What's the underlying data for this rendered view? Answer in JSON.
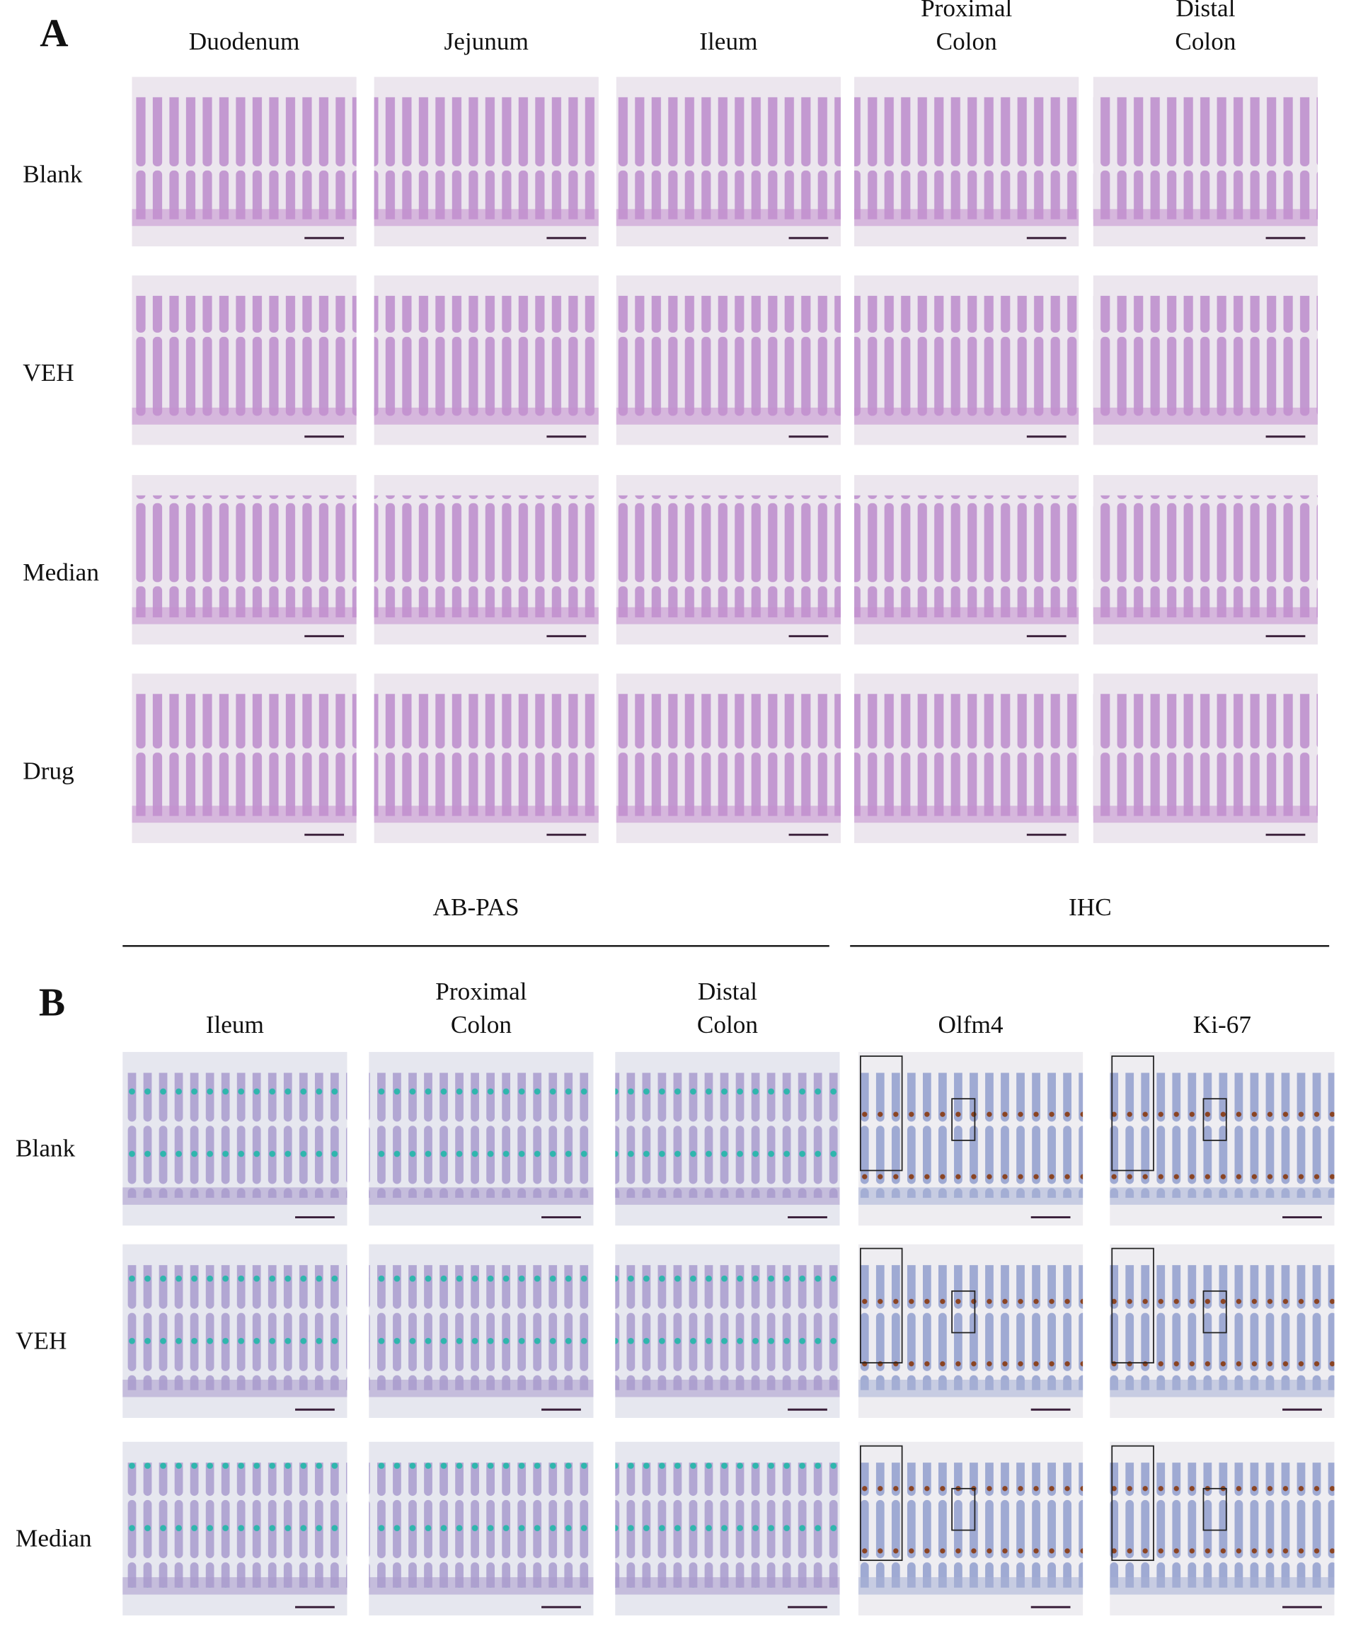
{
  "panel_a": {
    "label": "A",
    "columns": [
      [
        "Duodenum"
      ],
      [
        "Jejunum"
      ],
      [
        "Ileum"
      ],
      [
        "Proximal",
        "Colon"
      ],
      [
        "Distal",
        "Colon"
      ]
    ],
    "rows": [
      "Blank",
      "VEH",
      "Median",
      "Drug"
    ]
  },
  "panel_b": {
    "label": "B",
    "groups": [
      "AB-PAS",
      "IHC"
    ],
    "columns": [
      [
        "Ileum"
      ],
      [
        "Proximal",
        "Colon"
      ],
      [
        "Distal",
        "Colon"
      ],
      [
        "Olfm4"
      ],
      [
        "Ki-67"
      ]
    ],
    "rows": [
      "Blank",
      "VEH",
      "Median"
    ]
  }
}
